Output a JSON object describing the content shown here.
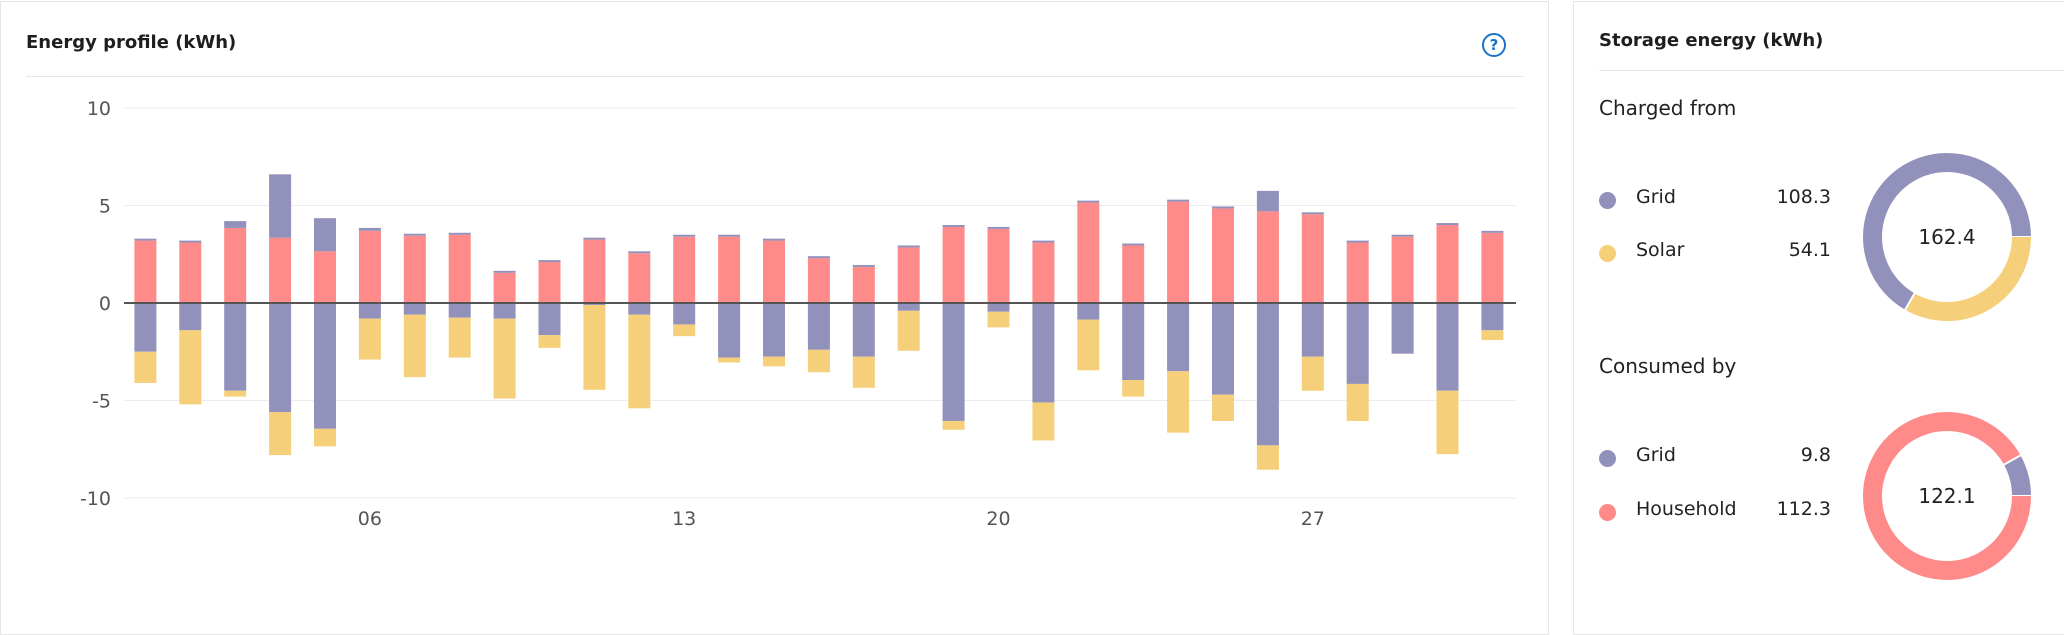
{
  "energy_profile": {
    "title": "Energy profile (kWh)",
    "help_icon": "question-circle-icon",
    "help_label": "?"
  },
  "chart_data": {
    "type": "bar",
    "stacked": true,
    "title": "Energy profile (kWh)",
    "xlabel": "",
    "ylabel": "",
    "ylim": [
      -10,
      10
    ],
    "yticks": [
      "10",
      "5",
      "0",
      "-5",
      "-10"
    ],
    "ytick_values": [
      10,
      5,
      0,
      -5,
      -10
    ],
    "x": [
      1,
      2,
      3,
      4,
      5,
      6,
      7,
      8,
      9,
      10,
      11,
      12,
      13,
      14,
      15,
      16,
      17,
      18,
      19,
      20,
      21,
      22,
      23,
      24,
      25,
      26,
      27,
      28,
      29,
      30,
      31
    ],
    "xtick_labels": [
      "06",
      "13",
      "20",
      "27"
    ],
    "xtick_values": [
      6,
      13,
      20,
      27
    ],
    "grid": true,
    "legend": "none",
    "series": [
      {
        "color": "#ff8a8a",
        "values": [
          3.2,
          3.1,
          3.85,
          3.35,
          2.65,
          3.7,
          3.45,
          3.5,
          1.55,
          2.1,
          3.25,
          2.55,
          3.4,
          3.4,
          3.2,
          2.3,
          1.85,
          2.85,
          3.9,
          3.8,
          3.1,
          5.15,
          2.95,
          5.2,
          4.85,
          4.7,
          4.55,
          3.1,
          3.4,
          4.0,
          3.6
        ]
      },
      {
        "color": "#9191bb",
        "values": [
          0.1,
          0.1,
          0.35,
          3.25,
          1.7,
          0.15,
          0.1,
          0.1,
          0.1,
          0.1,
          0.1,
          0.1,
          0.1,
          0.1,
          0.1,
          0.1,
          0.1,
          0.1,
          0.1,
          0.1,
          0.1,
          0.1,
          0.1,
          0.1,
          0.1,
          1.05,
          0.1,
          0.1,
          0.1,
          0.1,
          0.1
        ]
      },
      {
        "color": "#9191bb",
        "values": [
          -2.5,
          -1.4,
          -4.5,
          -5.6,
          -6.45,
          -0.8,
          -0.6,
          -0.75,
          -0.8,
          -1.65,
          -0.1,
          -0.6,
          -1.1,
          -2.8,
          -2.75,
          -2.4,
          -2.75,
          -0.4,
          -6.05,
          -0.45,
          -5.1,
          -0.85,
          -3.95,
          -3.5,
          -4.7,
          -7.3,
          -2.75,
          -4.15,
          -2.6,
          -4.5,
          -1.4
        ]
      },
      {
        "color": "#f5cf7a",
        "values": [
          -1.6,
          -3.8,
          -0.3,
          -2.2,
          -0.9,
          -2.1,
          -3.2,
          -2.05,
          -4.1,
          -0.65,
          -4.35,
          -4.8,
          -0.6,
          -0.25,
          -0.5,
          -1.15,
          -1.6,
          -2.05,
          -0.45,
          -0.8,
          -1.95,
          -2.6,
          -0.85,
          -3.15,
          -1.35,
          -1.25,
          -1.75,
          -1.9,
          0,
          -3.25,
          -0.5
        ]
      }
    ]
  },
  "storage": {
    "title": "Storage energy (kWh)",
    "charged": {
      "heading": "Charged from",
      "total": "162.4",
      "items": [
        {
          "label": "Grid",
          "value": "108.3",
          "amount": 108.3,
          "color": "#9191bb"
        },
        {
          "label": "Solar",
          "value": "54.1",
          "amount": 54.1,
          "color": "#f5cf7a"
        }
      ]
    },
    "consumed": {
      "heading": "Consumed by",
      "total": "122.1",
      "items": [
        {
          "label": "Grid",
          "value": "9.8",
          "amount": 9.8,
          "color": "#9191bb"
        },
        {
          "label": "Household",
          "value": "112.3",
          "amount": 112.3,
          "color": "#ff8a8a"
        }
      ]
    }
  }
}
